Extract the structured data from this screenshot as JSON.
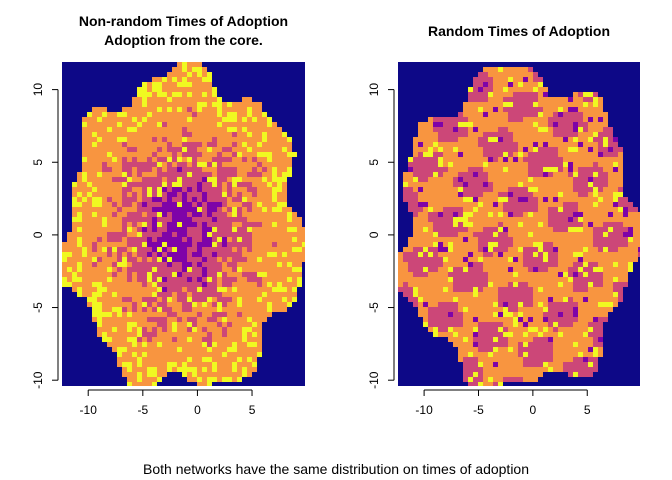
{
  "chart_data": [
    {
      "type": "raster",
      "title": "Non-random Times of Adoption",
      "subtitle": "Adoption from the core.",
      "pattern": "core",
      "xlim": [
        -12.4,
        9.85
      ],
      "ylim": [
        -10.4,
        11.9
      ],
      "xticks": [
        -10,
        -5,
        0,
        5
      ],
      "yticks": [
        -10,
        -5,
        0,
        5,
        10
      ],
      "colors": [
        "#0d0887",
        "#7e03a8",
        "#cc4778",
        "#f89540",
        "#f0f921"
      ]
    },
    {
      "type": "raster",
      "title": "Random Times of Adoption",
      "pattern": "random",
      "xlim": [
        -12.4,
        9.85
      ],
      "ylim": [
        -10.4,
        11.9
      ],
      "xticks": [
        -10,
        -5,
        0,
        5
      ],
      "yticks": [
        -10,
        -5,
        0,
        5,
        10
      ],
      "colors": [
        "#0d0887",
        "#7e03a8",
        "#cc4778",
        "#f89540",
        "#f0f921"
      ]
    }
  ],
  "caption": "Both networks have the same distribution on times of adoption"
}
